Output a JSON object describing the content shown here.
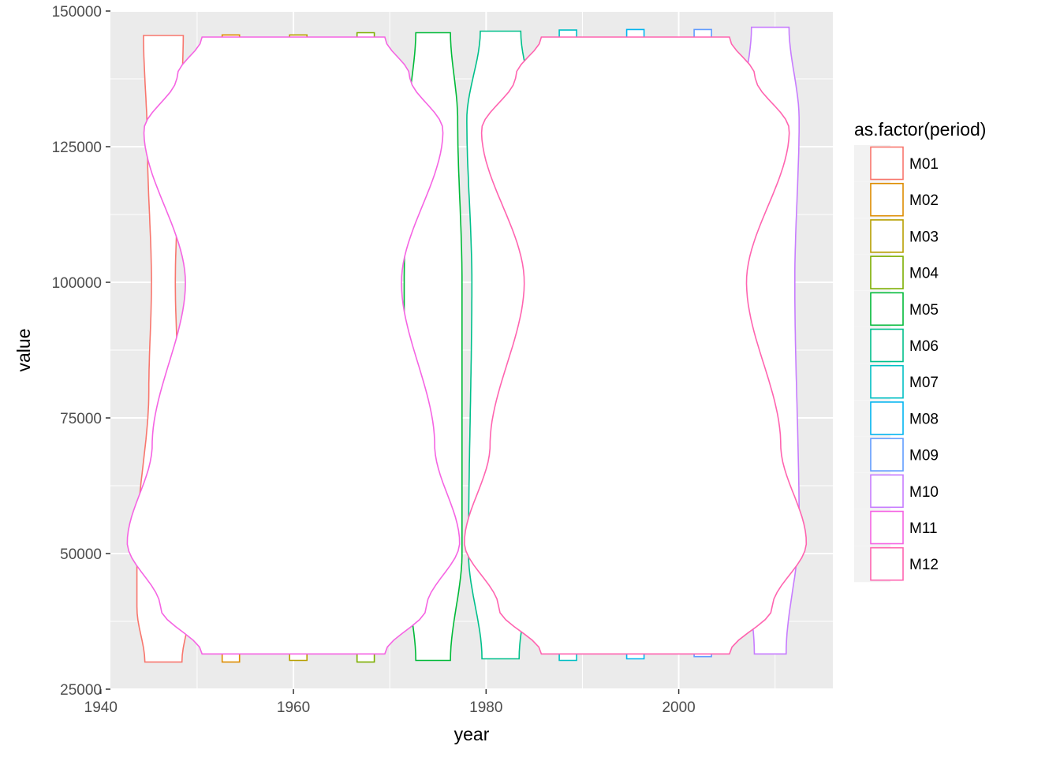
{
  "chart_data": {
    "type": "violin",
    "xlabel": "year",
    "ylabel": "value",
    "xlim": [
      1941,
      2016
    ],
    "ylim": [
      25000,
      150000
    ],
    "xticks": [
      1940,
      1960,
      1980,
      2000
    ],
    "yticks": [
      25000,
      50000,
      75000,
      100000,
      125000,
      150000
    ],
    "grid": true,
    "legend": {
      "title": "as.factor(period)",
      "position": "right",
      "labels": [
        "M01",
        "M02",
        "M03",
        "M04",
        "M05",
        "M06",
        "M07",
        "M08",
        "M09",
        "M10",
        "M11",
        "M12"
      ]
    },
    "series": [
      {
        "name": "M01",
        "color": "#F8766D",
        "x_center": 1946.5,
        "x_span": [
          1943.5,
          1949
        ],
        "y_min": 30000,
        "y_max": 145500,
        "width_profile": [
          [
            30000,
            0.7
          ],
          [
            40000,
            1.0
          ],
          [
            52000,
            1.0
          ],
          [
            80000,
            0.55
          ],
          [
            100000,
            0.45
          ],
          [
            125000,
            0.6
          ],
          [
            145500,
            0.75
          ]
        ]
      },
      {
        "name": "M02",
        "color": "#DE8C00",
        "x_center": 1953.5,
        "x_span": [
          1952,
          1955
        ],
        "y_min": 30000,
        "y_max": 145600,
        "width_profile": [
          [
            30000,
            0.6
          ],
          [
            145600,
            0.6
          ]
        ]
      },
      {
        "name": "M03",
        "color": "#B79F00",
        "x_center": 1960.5,
        "x_span": [
          1959,
          1962
        ],
        "y_min": 30300,
        "y_max": 145600,
        "width_profile": [
          [
            30300,
            0.6
          ],
          [
            145600,
            0.6
          ]
        ]
      },
      {
        "name": "M04",
        "color": "#7CAE00",
        "x_center": 1967.5,
        "x_span": [
          1966,
          1969
        ],
        "y_min": 30000,
        "y_max": 146000,
        "width_profile": [
          [
            30000,
            0.6
          ],
          [
            146000,
            0.6
          ]
        ]
      },
      {
        "name": "M05",
        "color": "#00BA38",
        "x_center": 1974.5,
        "x_span": [
          1972,
          1978
        ],
        "y_min": 30300,
        "y_max": 146000,
        "width_profile": [
          [
            30300,
            0.6
          ],
          [
            50000,
            1.0
          ],
          [
            100000,
            1.0
          ],
          [
            130000,
            0.85
          ],
          [
            146000,
            0.6
          ]
        ]
      },
      {
        "name": "M06",
        "color": "#00C08B",
        "x_center": 1981.5,
        "x_span": [
          1978,
          1985
        ],
        "y_min": 30600,
        "y_max": 146300,
        "width_profile": [
          [
            30600,
            0.55
          ],
          [
            50000,
            0.95
          ],
          [
            100000,
            0.85
          ],
          [
            130000,
            1.0
          ],
          [
            146300,
            0.6
          ]
        ]
      },
      {
        "name": "M07",
        "color": "#00BFC4",
        "x_center": 1988.5,
        "x_span": [
          1987,
          1990
        ],
        "y_min": 30300,
        "y_max": 146500,
        "width_profile": [
          [
            30300,
            0.6
          ],
          [
            146500,
            0.6
          ]
        ]
      },
      {
        "name": "M08",
        "color": "#00B4F0",
        "x_center": 1995.5,
        "x_span": [
          1994,
          1997
        ],
        "y_min": 30600,
        "y_max": 146600,
        "width_profile": [
          [
            30600,
            0.6
          ],
          [
            146600,
            0.6
          ]
        ]
      },
      {
        "name": "M09",
        "color": "#619CFF",
        "x_center": 2002.5,
        "x_span": [
          2001,
          2004
        ],
        "y_min": 31000,
        "y_max": 146600,
        "width_profile": [
          [
            31000,
            0.6
          ],
          [
            146600,
            0.6
          ]
        ]
      },
      {
        "name": "M10",
        "color": "#C77CFF",
        "x_center": 2009.5,
        "x_span": [
          2007,
          2013
        ],
        "y_min": 31500,
        "y_max": 147000,
        "width_profile": [
          [
            31500,
            0.55
          ],
          [
            55000,
            1.0
          ],
          [
            100000,
            0.85
          ],
          [
            130000,
            1.0
          ],
          [
            147000,
            0.65
          ]
        ]
      },
      {
        "name": "M11",
        "color": "#F564E3",
        "x_center": 1960,
        "x_span": [
          1943,
          1977.5
        ],
        "y_min": 31500,
        "y_max": 145200,
        "width_profile": [
          [
            31500,
            0.55
          ],
          [
            40000,
            0.8
          ],
          [
            52000,
            1.0
          ],
          [
            70000,
            0.85
          ],
          [
            100000,
            0.65
          ],
          [
            128000,
            0.9
          ],
          [
            138000,
            0.7
          ],
          [
            145200,
            0.55
          ]
        ]
      },
      {
        "name": "M12",
        "color": "#FF64B0",
        "x_center": 1995.5,
        "x_span": [
          1977.5,
          2013
        ],
        "y_min": 31500,
        "y_max": 145200,
        "width_profile": [
          [
            31500,
            0.55
          ],
          [
            40000,
            0.8
          ],
          [
            52000,
            1.0
          ],
          [
            70000,
            0.85
          ],
          [
            100000,
            0.65
          ],
          [
            128000,
            0.9
          ],
          [
            138000,
            0.7
          ],
          [
            145200,
            0.55
          ]
        ]
      }
    ]
  }
}
